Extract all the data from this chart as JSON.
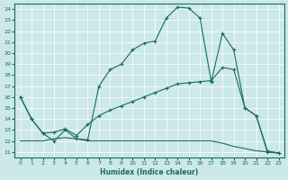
{
  "xlabel": "Humidex (Indice chaleur)",
  "bg_color": "#cce8e8",
  "line_color": "#1a6b5a",
  "xlim": [
    -0.5,
    23.5
  ],
  "ylim": [
    10.5,
    24.5
  ],
  "xticks": [
    0,
    1,
    2,
    3,
    4,
    5,
    6,
    7,
    8,
    9,
    10,
    11,
    12,
    13,
    14,
    15,
    16,
    17,
    18,
    19,
    20,
    21,
    22,
    23
  ],
  "yticks": [
    11,
    12,
    13,
    14,
    15,
    16,
    17,
    18,
    19,
    20,
    21,
    22,
    23,
    24
  ],
  "series1_x": [
    0,
    1,
    2,
    3,
    4,
    5,
    6,
    7,
    8,
    9,
    10,
    11,
    12,
    13,
    14,
    15,
    16,
    17,
    18,
    19,
    20,
    21,
    22,
    23
  ],
  "series1_y": [
    16.0,
    14.0,
    12.7,
    12.0,
    13.0,
    12.2,
    12.1,
    17.0,
    18.5,
    19.0,
    20.3,
    20.9,
    21.1,
    23.2,
    24.2,
    24.1,
    23.2,
    17.4,
    21.8,
    20.3,
    15.0,
    14.3,
    11.0,
    10.9
  ],
  "series2_x": [
    0,
    1,
    2,
    3,
    4,
    5,
    6,
    7,
    8,
    9,
    10,
    11,
    12,
    13,
    14,
    15,
    16,
    17,
    18,
    19,
    20,
    21,
    22,
    23
  ],
  "series2_y": [
    16.0,
    14.0,
    12.7,
    12.8,
    13.1,
    12.5,
    13.5,
    14.3,
    14.8,
    15.2,
    15.6,
    16.0,
    16.4,
    16.8,
    17.2,
    17.3,
    17.4,
    17.5,
    18.7,
    18.5,
    15.0,
    14.3,
    11.1,
    10.9
  ],
  "series3_x": [
    0,
    1,
    2,
    3,
    4,
    5,
    6,
    7,
    8,
    9,
    10,
    11,
    12,
    13,
    14,
    15,
    16,
    17,
    18,
    19,
    20,
    21,
    22,
    23
  ],
  "series3_y": [
    12.0,
    12.0,
    12.0,
    12.2,
    12.3,
    12.2,
    12.0,
    12.0,
    12.0,
    12.0,
    12.0,
    12.0,
    12.0,
    12.0,
    12.0,
    12.0,
    12.0,
    12.0,
    11.8,
    11.5,
    11.3,
    11.1,
    11.0,
    10.9
  ]
}
